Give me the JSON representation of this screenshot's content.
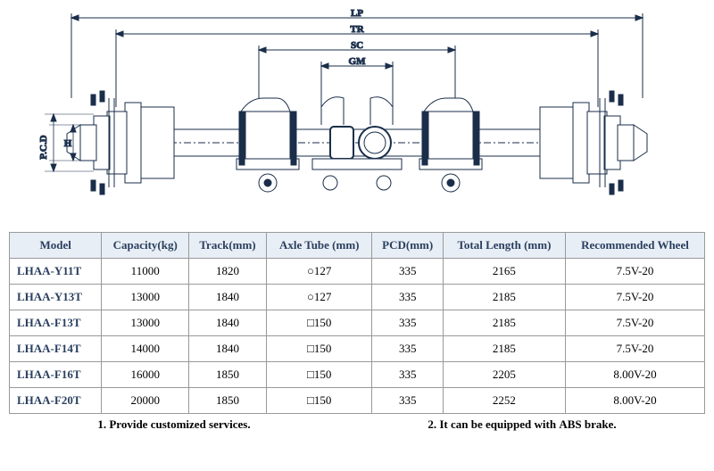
{
  "diagram": {
    "labels": {
      "lp": "LP",
      "tr": "TR",
      "sc": "SC",
      "gm": "GM",
      "pcd": "P.C.D",
      "h": "H"
    },
    "stroke": "#1a2e4a",
    "fill_light": "#ffffff"
  },
  "table": {
    "columns": [
      "Model",
      "Capacity(kg)",
      "Track(mm)",
      "Axle Tube (mm)",
      "PCD(mm)",
      "Total Length (mm)",
      "Recommended Wheel"
    ],
    "rows": [
      [
        "LHAA-Y11T",
        "11000",
        "1820",
        "○127",
        "335",
        "2165",
        "7.5V-20"
      ],
      [
        "LHAA-Y13T",
        "13000",
        "1840",
        "○127",
        "335",
        "2185",
        "7.5V-20"
      ],
      [
        "LHAA-F13T",
        "13000",
        "1840",
        "□150",
        "335",
        "2185",
        "7.5V-20"
      ],
      [
        "LHAA-F14T",
        "14000",
        "1840",
        "□150",
        "335",
        "2185",
        "7.5V-20"
      ],
      [
        "LHAA-F16T",
        "16000",
        "1850",
        "□150",
        "335",
        "2205",
        "8.00V-20"
      ],
      [
        "LHAA-F20T",
        "20000",
        "1850",
        "□150",
        "335",
        "2252",
        "8.00V-20"
      ]
    ]
  },
  "notes": {
    "n1": "1. Provide customized services.",
    "n2": "2. It can be equipped with ABS brake."
  }
}
